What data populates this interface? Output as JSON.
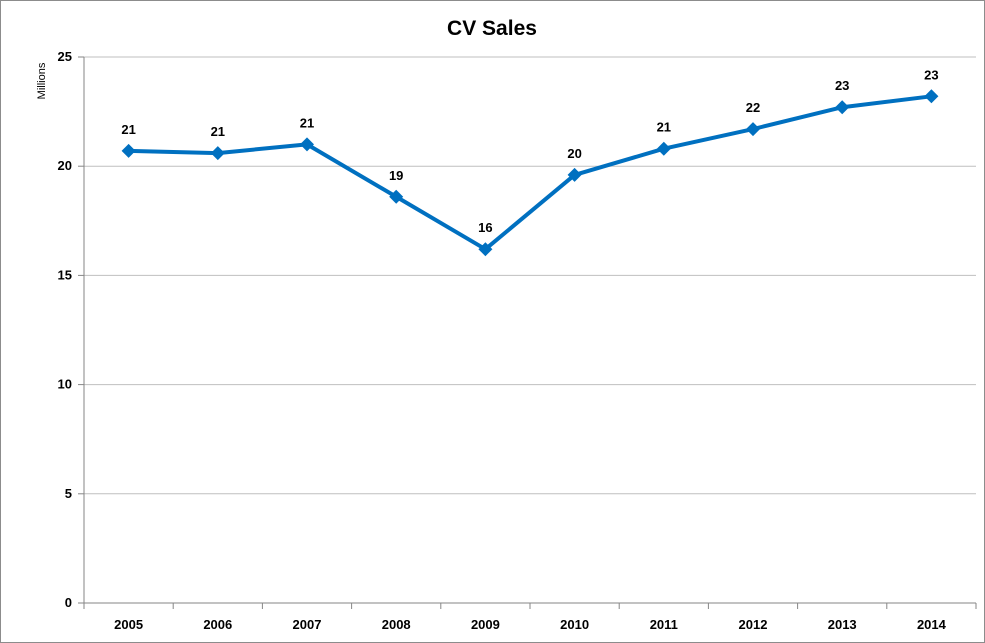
{
  "chart_data": {
    "type": "line",
    "title": "CV Sales",
    "xlabel": "",
    "ylabel": "Millions",
    "categories": [
      "2005",
      "2006",
      "2007",
      "2008",
      "2009",
      "2010",
      "2011",
      "2012",
      "2013",
      "2014"
    ],
    "series": [
      {
        "values": [
          20.7,
          20.6,
          21.0,
          18.6,
          16.2,
          19.6,
          20.8,
          21.7,
          22.7,
          23.2
        ],
        "data_labels": [
          "21",
          "21",
          "21",
          "19",
          "16",
          "20",
          "21",
          "22",
          "23",
          "23"
        ],
        "color": "#0070c0",
        "marker": "diamond"
      }
    ],
    "ylim": [
      0,
      25
    ],
    "yticks": [
      0,
      5,
      10,
      15,
      20,
      25
    ],
    "grid": true,
    "legend": "none"
  }
}
